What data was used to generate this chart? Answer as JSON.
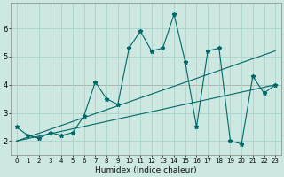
{
  "xlabel": "Humidex (Indice chaleur)",
  "bg_color": "#cce8e0",
  "line_color": "#006868",
  "grid_color": "#a8d4cc",
  "red_line_y": 4.0,
  "xlim": [
    -0.5,
    23.5
  ],
  "ylim": [
    1.5,
    6.9
  ],
  "yticks": [
    2,
    3,
    4,
    5,
    6
  ],
  "xticks": [
    0,
    1,
    2,
    3,
    4,
    5,
    6,
    7,
    8,
    9,
    10,
    11,
    12,
    13,
    14,
    15,
    16,
    17,
    18,
    19,
    20,
    21,
    22,
    23
  ],
  "curve_x": [
    0,
    1,
    2,
    3,
    4,
    5,
    6,
    7,
    8,
    9,
    10,
    11,
    12,
    13,
    14,
    15,
    16,
    17,
    18,
    19,
    20,
    21,
    22,
    23
  ],
  "curve_y": [
    2.5,
    2.2,
    2.1,
    2.3,
    2.2,
    2.3,
    2.9,
    4.1,
    3.5,
    3.3,
    5.3,
    5.9,
    5.2,
    5.3,
    6.5,
    4.8,
    2.5,
    5.2,
    5.3,
    2.0,
    1.9,
    4.3,
    3.7,
    4.0
  ],
  "line2_x": [
    0,
    23
  ],
  "line2_y": [
    2.0,
    5.2
  ],
  "line3_x": [
    0,
    23
  ],
  "line3_y": [
    2.0,
    4.0
  ]
}
